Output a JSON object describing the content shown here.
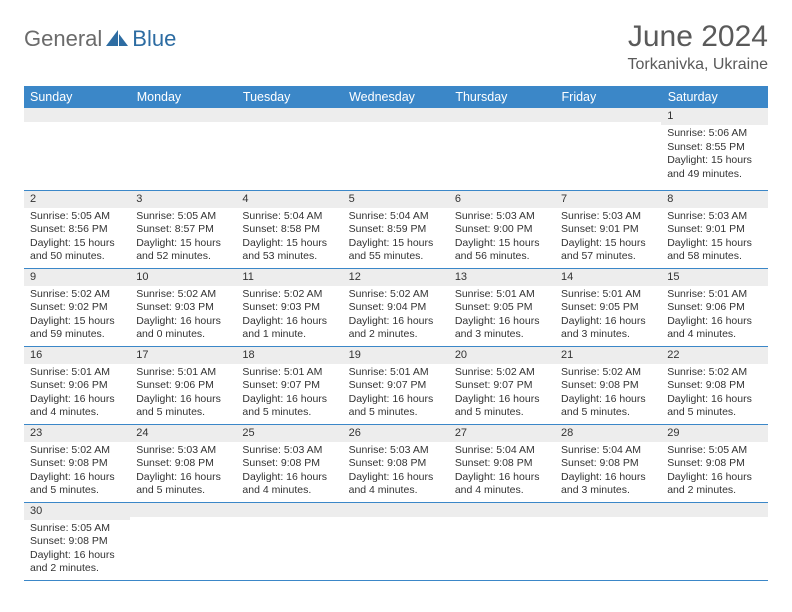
{
  "logo": {
    "text_gray": "General",
    "text_blue": "Blue"
  },
  "title": "June 2024",
  "location": "Torkanivka, Ukraine",
  "colors": {
    "header_bg": "#3b87c8",
    "header_text": "#ffffff",
    "daynum_bg": "#ededed",
    "border": "#3b87c8",
    "title_color": "#5a5a5a",
    "logo_gray": "#6b6b6b",
    "logo_blue": "#2d6ca2"
  },
  "weekdays": [
    "Sunday",
    "Monday",
    "Tuesday",
    "Wednesday",
    "Thursday",
    "Friday",
    "Saturday"
  ],
  "weeks": [
    [
      {
        "n": "",
        "sunrise": "",
        "sunset": "",
        "daylight": ""
      },
      {
        "n": "",
        "sunrise": "",
        "sunset": "",
        "daylight": ""
      },
      {
        "n": "",
        "sunrise": "",
        "sunset": "",
        "daylight": ""
      },
      {
        "n": "",
        "sunrise": "",
        "sunset": "",
        "daylight": ""
      },
      {
        "n": "",
        "sunrise": "",
        "sunset": "",
        "daylight": ""
      },
      {
        "n": "",
        "sunrise": "",
        "sunset": "",
        "daylight": ""
      },
      {
        "n": "1",
        "sunrise": "Sunrise: 5:06 AM",
        "sunset": "Sunset: 8:55 PM",
        "daylight": "Daylight: 15 hours and 49 minutes."
      }
    ],
    [
      {
        "n": "2",
        "sunrise": "Sunrise: 5:05 AM",
        "sunset": "Sunset: 8:56 PM",
        "daylight": "Daylight: 15 hours and 50 minutes."
      },
      {
        "n": "3",
        "sunrise": "Sunrise: 5:05 AM",
        "sunset": "Sunset: 8:57 PM",
        "daylight": "Daylight: 15 hours and 52 minutes."
      },
      {
        "n": "4",
        "sunrise": "Sunrise: 5:04 AM",
        "sunset": "Sunset: 8:58 PM",
        "daylight": "Daylight: 15 hours and 53 minutes."
      },
      {
        "n": "5",
        "sunrise": "Sunrise: 5:04 AM",
        "sunset": "Sunset: 8:59 PM",
        "daylight": "Daylight: 15 hours and 55 minutes."
      },
      {
        "n": "6",
        "sunrise": "Sunrise: 5:03 AM",
        "sunset": "Sunset: 9:00 PM",
        "daylight": "Daylight: 15 hours and 56 minutes."
      },
      {
        "n": "7",
        "sunrise": "Sunrise: 5:03 AM",
        "sunset": "Sunset: 9:01 PM",
        "daylight": "Daylight: 15 hours and 57 minutes."
      },
      {
        "n": "8",
        "sunrise": "Sunrise: 5:03 AM",
        "sunset": "Sunset: 9:01 PM",
        "daylight": "Daylight: 15 hours and 58 minutes."
      }
    ],
    [
      {
        "n": "9",
        "sunrise": "Sunrise: 5:02 AM",
        "sunset": "Sunset: 9:02 PM",
        "daylight": "Daylight: 15 hours and 59 minutes."
      },
      {
        "n": "10",
        "sunrise": "Sunrise: 5:02 AM",
        "sunset": "Sunset: 9:03 PM",
        "daylight": "Daylight: 16 hours and 0 minutes."
      },
      {
        "n": "11",
        "sunrise": "Sunrise: 5:02 AM",
        "sunset": "Sunset: 9:03 PM",
        "daylight": "Daylight: 16 hours and 1 minute."
      },
      {
        "n": "12",
        "sunrise": "Sunrise: 5:02 AM",
        "sunset": "Sunset: 9:04 PM",
        "daylight": "Daylight: 16 hours and 2 minutes."
      },
      {
        "n": "13",
        "sunrise": "Sunrise: 5:01 AM",
        "sunset": "Sunset: 9:05 PM",
        "daylight": "Daylight: 16 hours and 3 minutes."
      },
      {
        "n": "14",
        "sunrise": "Sunrise: 5:01 AM",
        "sunset": "Sunset: 9:05 PM",
        "daylight": "Daylight: 16 hours and 3 minutes."
      },
      {
        "n": "15",
        "sunrise": "Sunrise: 5:01 AM",
        "sunset": "Sunset: 9:06 PM",
        "daylight": "Daylight: 16 hours and 4 minutes."
      }
    ],
    [
      {
        "n": "16",
        "sunrise": "Sunrise: 5:01 AM",
        "sunset": "Sunset: 9:06 PM",
        "daylight": "Daylight: 16 hours and 4 minutes."
      },
      {
        "n": "17",
        "sunrise": "Sunrise: 5:01 AM",
        "sunset": "Sunset: 9:06 PM",
        "daylight": "Daylight: 16 hours and 5 minutes."
      },
      {
        "n": "18",
        "sunrise": "Sunrise: 5:01 AM",
        "sunset": "Sunset: 9:07 PM",
        "daylight": "Daylight: 16 hours and 5 minutes."
      },
      {
        "n": "19",
        "sunrise": "Sunrise: 5:01 AM",
        "sunset": "Sunset: 9:07 PM",
        "daylight": "Daylight: 16 hours and 5 minutes."
      },
      {
        "n": "20",
        "sunrise": "Sunrise: 5:02 AM",
        "sunset": "Sunset: 9:07 PM",
        "daylight": "Daylight: 16 hours and 5 minutes."
      },
      {
        "n": "21",
        "sunrise": "Sunrise: 5:02 AM",
        "sunset": "Sunset: 9:08 PM",
        "daylight": "Daylight: 16 hours and 5 minutes."
      },
      {
        "n": "22",
        "sunrise": "Sunrise: 5:02 AM",
        "sunset": "Sunset: 9:08 PM",
        "daylight": "Daylight: 16 hours and 5 minutes."
      }
    ],
    [
      {
        "n": "23",
        "sunrise": "Sunrise: 5:02 AM",
        "sunset": "Sunset: 9:08 PM",
        "daylight": "Daylight: 16 hours and 5 minutes."
      },
      {
        "n": "24",
        "sunrise": "Sunrise: 5:03 AM",
        "sunset": "Sunset: 9:08 PM",
        "daylight": "Daylight: 16 hours and 5 minutes."
      },
      {
        "n": "25",
        "sunrise": "Sunrise: 5:03 AM",
        "sunset": "Sunset: 9:08 PM",
        "daylight": "Daylight: 16 hours and 4 minutes."
      },
      {
        "n": "26",
        "sunrise": "Sunrise: 5:03 AM",
        "sunset": "Sunset: 9:08 PM",
        "daylight": "Daylight: 16 hours and 4 minutes."
      },
      {
        "n": "27",
        "sunrise": "Sunrise: 5:04 AM",
        "sunset": "Sunset: 9:08 PM",
        "daylight": "Daylight: 16 hours and 4 minutes."
      },
      {
        "n": "28",
        "sunrise": "Sunrise: 5:04 AM",
        "sunset": "Sunset: 9:08 PM",
        "daylight": "Daylight: 16 hours and 3 minutes."
      },
      {
        "n": "29",
        "sunrise": "Sunrise: 5:05 AM",
        "sunset": "Sunset: 9:08 PM",
        "daylight": "Daylight: 16 hours and 2 minutes."
      }
    ],
    [
      {
        "n": "30",
        "sunrise": "Sunrise: 5:05 AM",
        "sunset": "Sunset: 9:08 PM",
        "daylight": "Daylight: 16 hours and 2 minutes."
      },
      {
        "n": "",
        "sunrise": "",
        "sunset": "",
        "daylight": ""
      },
      {
        "n": "",
        "sunrise": "",
        "sunset": "",
        "daylight": ""
      },
      {
        "n": "",
        "sunrise": "",
        "sunset": "",
        "daylight": ""
      },
      {
        "n": "",
        "sunrise": "",
        "sunset": "",
        "daylight": ""
      },
      {
        "n": "",
        "sunrise": "",
        "sunset": "",
        "daylight": ""
      },
      {
        "n": "",
        "sunrise": "",
        "sunset": "",
        "daylight": ""
      }
    ]
  ]
}
